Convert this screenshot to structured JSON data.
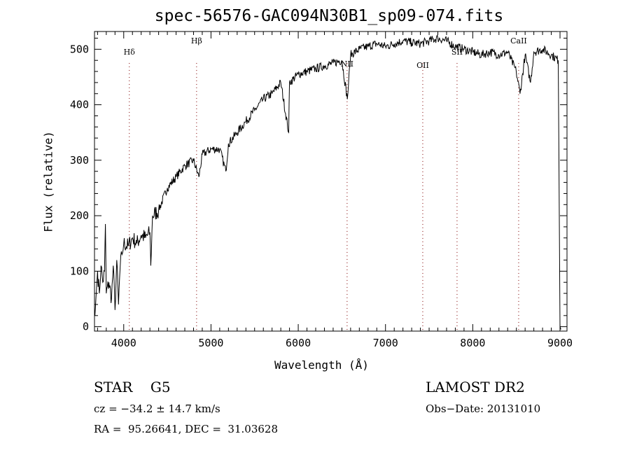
{
  "chart_data": {
    "type": "line",
    "title": "spec-56576-GAC094N30B1_sp09-074.fits",
    "xlabel": "Wavelength (Å)",
    "ylabel": "Flux (relative)",
    "xlim": [
      3665,
      9080
    ],
    "ylim": [
      -8,
      532
    ],
    "xticks": [
      4000,
      5000,
      6000,
      7000,
      8000,
      9000
    ],
    "yticks": [
      0,
      100,
      200,
      300,
      400,
      500
    ],
    "grid": false,
    "line_color": "#000000",
    "marker_color": "#800000",
    "lines": [
      {
        "label": "Hδ",
        "x": 4064
      },
      {
        "label": "Hβ",
        "x": 4835
      },
      {
        "label": "NII",
        "x": 6560
      },
      {
        "label": "OII",
        "x": 7427
      },
      {
        "label": "SII",
        "x": 7820
      },
      {
        "label": "CaII",
        "x": 8526
      }
    ],
    "series": [
      {
        "name": "spectrum",
        "x": [
          3670,
          3700,
          3720,
          3740,
          3760,
          3780,
          3790,
          3800,
          3830,
          3860,
          3880,
          3900,
          3920,
          3940,
          3960,
          3980,
          4000,
          4050,
          4100,
          4150,
          4200,
          4250,
          4300,
          4310,
          4330,
          4400,
          4500,
          4600,
          4700,
          4800,
          4861,
          4900,
          5000,
          5100,
          5170,
          5200,
          5300,
          5400,
          5500,
          5600,
          5700,
          5800,
          5890,
          5900,
          6000,
          6100,
          6200,
          6300,
          6400,
          6500,
          6563,
          6600,
          6700,
          6800,
          6900,
          7000,
          7100,
          7200,
          7300,
          7400,
          7500,
          7600,
          7700,
          7800,
          7900,
          8000,
          8100,
          8200,
          8300,
          8400,
          8498,
          8542,
          8600,
          8662,
          8700,
          8800,
          8900,
          8980,
          9000,
          9010
        ],
        "y": [
          20,
          100,
          60,
          110,
          80,
          100,
          185,
          60,
          80,
          50,
          110,
          30,
          120,
          40,
          110,
          130,
          150,
          145,
          160,
          150,
          165,
          160,
          170,
          110,
          200,
          210,
          250,
          270,
          290,
          300,
          270,
          310,
          320,
          320,
          280,
          330,
          350,
          370,
          390,
          410,
          420,
          440,
          350,
          440,
          455,
          460,
          465,
          470,
          475,
          480,
          410,
          490,
          500,
          505,
          510,
          505,
          510,
          515,
          512,
          510,
          515,
          520,
          515,
          505,
          500,
          495,
          490,
          495,
          490,
          495,
          460,
          420,
          490,
          440,
          495,
          500,
          490,
          480,
          0,
          -5
        ]
      }
    ],
    "footer": {
      "object": "STAR    G5",
      "survey": "LAMOST DR2",
      "cz": "cz = −34.2 ± 14.7 km/s",
      "obs_date": "Obs−Date: 20131010",
      "coords": "RA =  95.26641, DEC =  31.03628"
    }
  }
}
